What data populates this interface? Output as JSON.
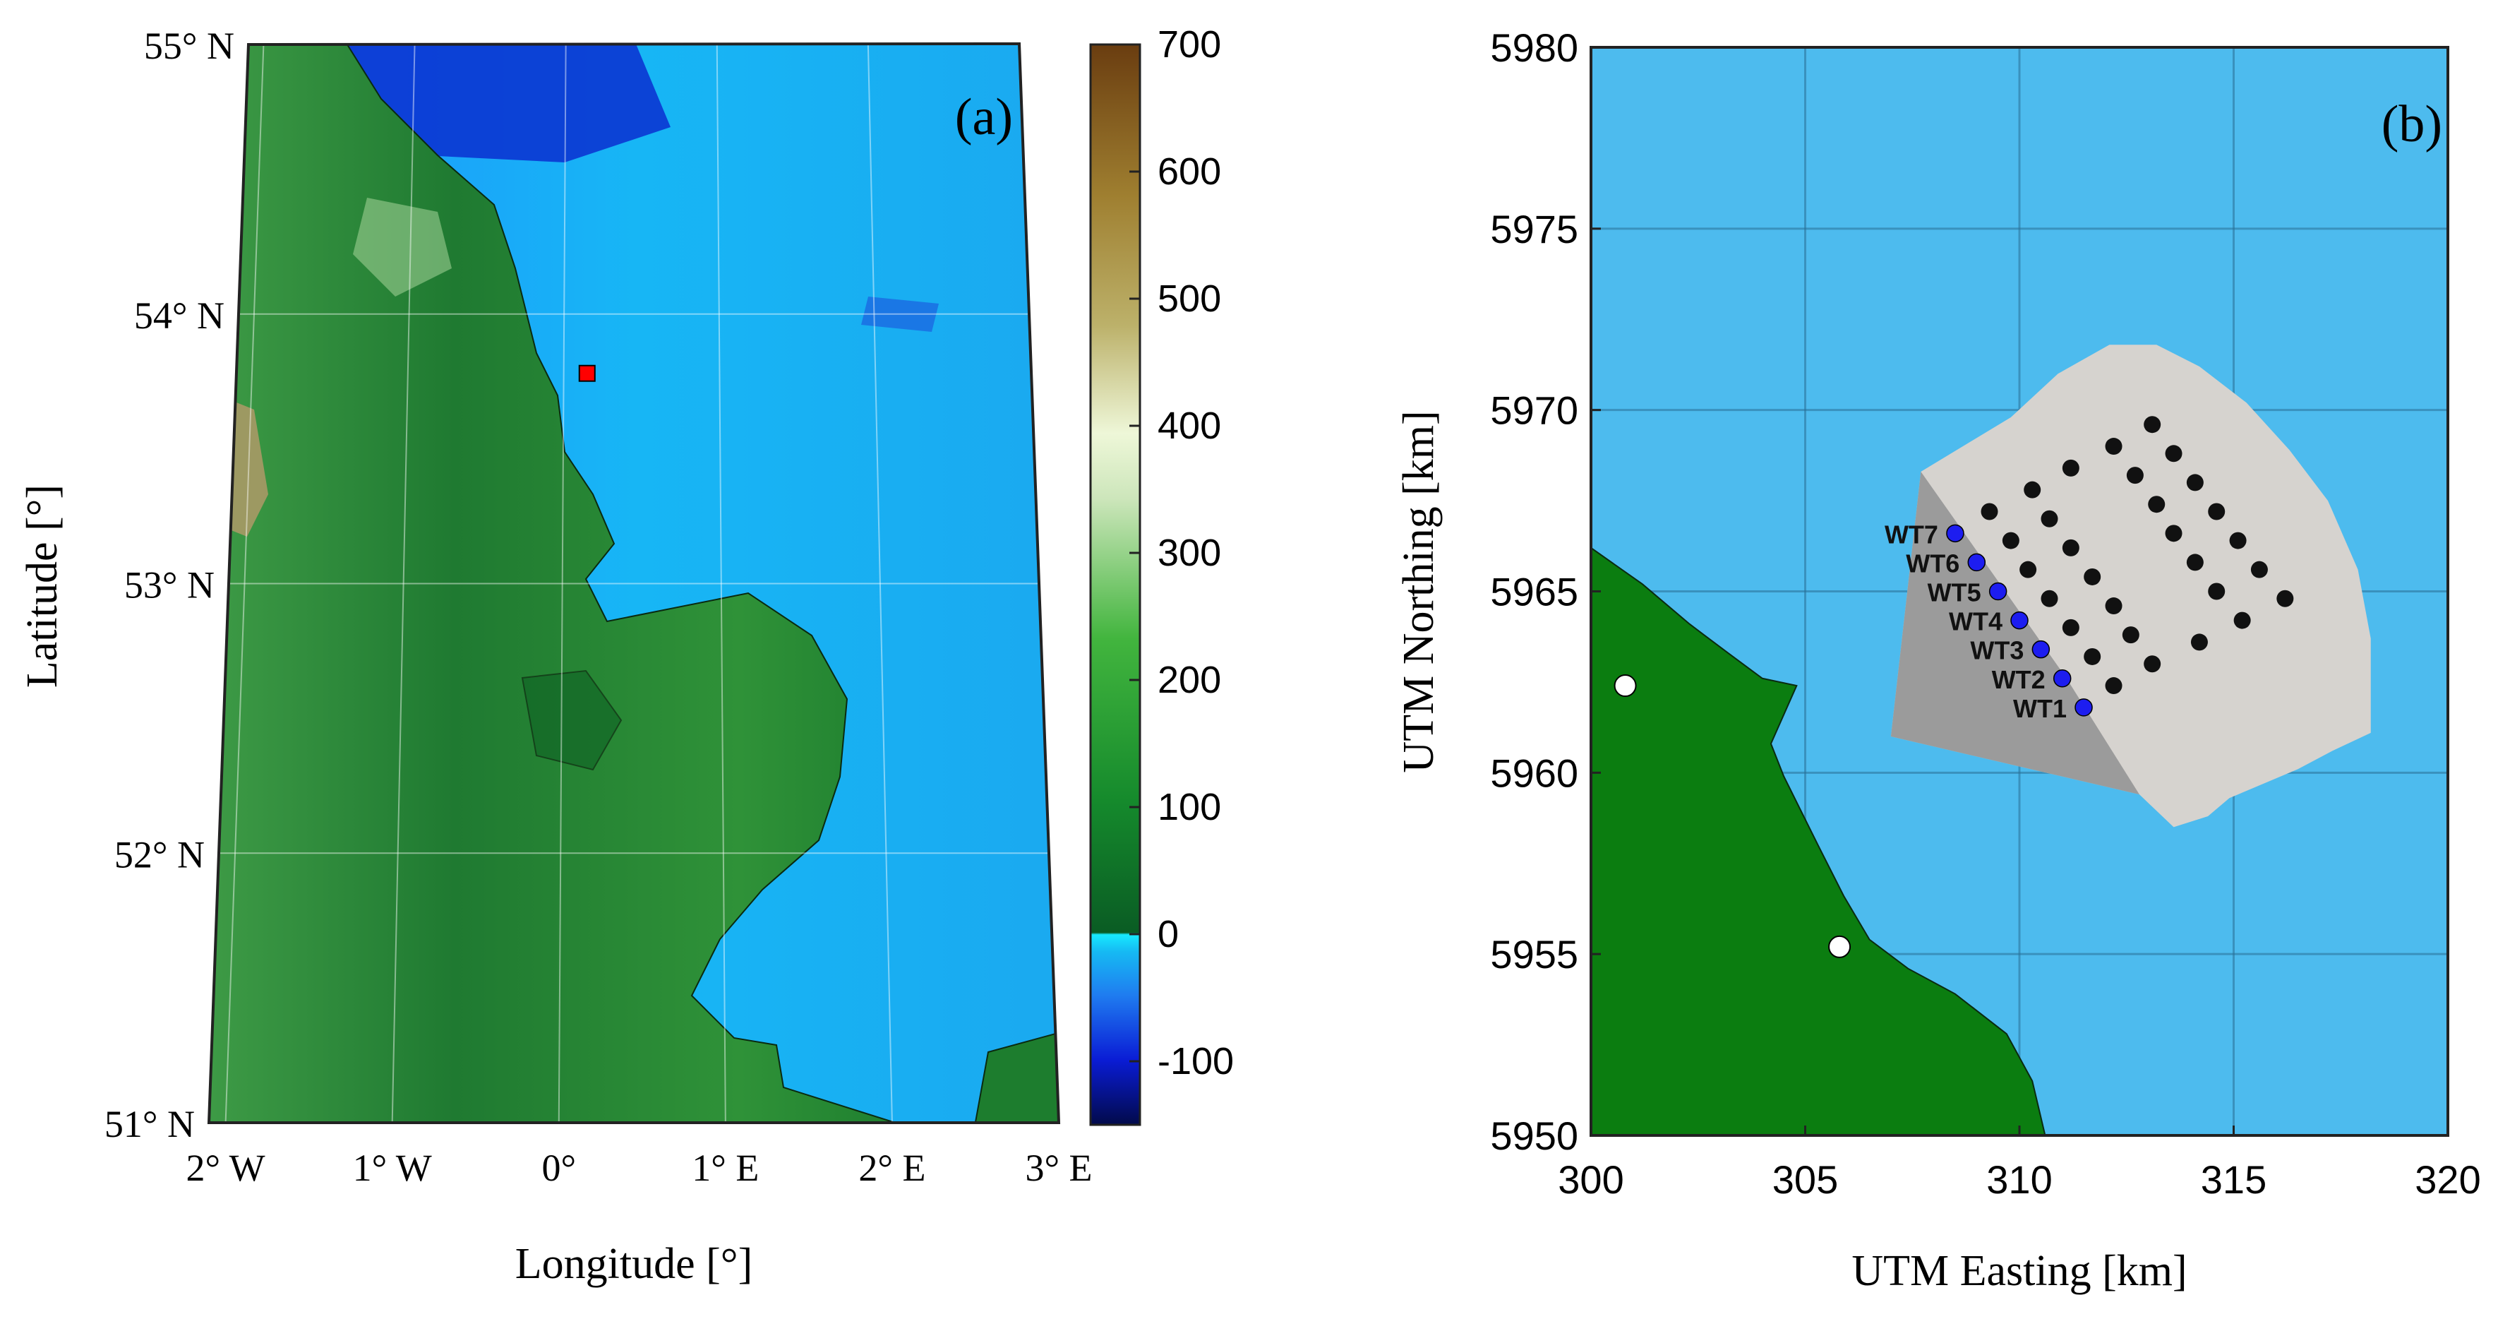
{
  "panel_a": {
    "label": "(a)",
    "xlabel": "Longitude [°]",
    "ylabel": "Latitude [°]",
    "lat_ticks": [
      {
        "lat": 55,
        "label": "55° N"
      },
      {
        "lat": 54,
        "label": "54° N"
      },
      {
        "lat": 53,
        "label": "53° N"
      },
      {
        "lat": 52,
        "label": "52° N"
      },
      {
        "lat": 51,
        "label": "51° N"
      }
    ],
    "lon_ticks": [
      {
        "lon": -2,
        "label": "2° W"
      },
      {
        "lon": -1,
        "label": "1° W"
      },
      {
        "lon": 0,
        "label": "0°"
      },
      {
        "lon": 1,
        "label": "1° E"
      },
      {
        "lon": 2,
        "label": "2° E"
      },
      {
        "lon": 3,
        "label": "3° E"
      }
    ],
    "site_marker": {
      "lon": 0.15,
      "lat": 53.78,
      "color": "#ff0000"
    },
    "colorbar": {
      "min": -150,
      "max": 700,
      "ticks": [
        {
          "value": 700,
          "label": "700"
        },
        {
          "value": 600,
          "label": "600"
        },
        {
          "value": 500,
          "label": "500"
        },
        {
          "value": 400,
          "label": "400"
        },
        {
          "value": 300,
          "label": "300"
        },
        {
          "value": 200,
          "label": "200"
        },
        {
          "value": 100,
          "label": "100"
        },
        {
          "value": 0,
          "label": "0"
        },
        {
          "value": -100,
          "label": "-100"
        }
      ]
    }
  },
  "panel_b": {
    "label": "(b)",
    "xlabel": "UTM Easting [km]",
    "ylabel": "UTM Northing [km]",
    "xlim": [
      300,
      320
    ],
    "ylim": [
      5950,
      5980
    ],
    "x_ticks": [
      {
        "value": 300,
        "label": "300"
      },
      {
        "value": 305,
        "label": "305"
      },
      {
        "value": 310,
        "label": "310"
      },
      {
        "value": 315,
        "label": "315"
      },
      {
        "value": 320,
        "label": "320"
      }
    ],
    "y_ticks": [
      {
        "value": 5950,
        "label": "5950"
      },
      {
        "value": 5955,
        "label": "5955"
      },
      {
        "value": 5960,
        "label": "5960"
      },
      {
        "value": 5965,
        "label": "5965"
      },
      {
        "value": 5970,
        "label": "5970"
      },
      {
        "value": 5975,
        "label": "5975"
      },
      {
        "value": 5980,
        "label": "5980"
      }
    ],
    "colors": {
      "sea": "#4dbbee",
      "land": "#0b7d10",
      "farm": "#d6d3cf",
      "sector": "#9b9b9b",
      "turbine": "#111111",
      "labelled_turbine": "#1d1df0"
    },
    "coastline": [
      [
        300,
        5966.2
      ],
      [
        301.2,
        5965.2
      ],
      [
        302.3,
        5964.1
      ],
      [
        303.2,
        5963.3
      ],
      [
        304,
        5962.6
      ],
      [
        304.8,
        5962.4
      ],
      [
        304.2,
        5960.8
      ],
      [
        304.5,
        5959.9
      ],
      [
        305.3,
        5958
      ],
      [
        305.9,
        5956.6
      ],
      [
        306.5,
        5955.4
      ],
      [
        307.4,
        5954.6
      ],
      [
        308.5,
        5953.9
      ],
      [
        309.7,
        5952.8
      ],
      [
        310.3,
        5951.5
      ],
      [
        310.6,
        5950
      ],
      [
        300,
        5950
      ]
    ],
    "wind_farm": [
      [
        307,
        5961
      ],
      [
        307.7,
        5968.3
      ],
      [
        309.8,
        5969.8
      ],
      [
        310.9,
        5971
      ],
      [
        312.1,
        5971.8
      ],
      [
        313.2,
        5971.8
      ],
      [
        314.2,
        5971.2
      ],
      [
        315.3,
        5970.2
      ],
      [
        316.3,
        5968.9
      ],
      [
        317.2,
        5967.5
      ],
      [
        317.9,
        5965.6
      ],
      [
        318.2,
        5963.7
      ],
      [
        318.2,
        5961.1
      ],
      [
        317.3,
        5960.6
      ],
      [
        316.5,
        5960.1
      ],
      [
        315.7,
        5959.7
      ],
      [
        314.9,
        5959.3
      ],
      [
        314.4,
        5958.8
      ],
      [
        313.6,
        5958.5
      ],
      [
        312.8,
        5959.4
      ]
    ],
    "sector": [
      [
        307,
        5961
      ],
      [
        307.7,
        5968.3
      ],
      [
        311.1,
        5962.6
      ],
      [
        312.8,
        5959.4
      ]
    ],
    "labelled_turbines": [
      {
        "label": "WT7",
        "x": 308.5,
        "y": 5966.6
      },
      {
        "label": "WT6",
        "x": 309.0,
        "y": 5965.8
      },
      {
        "label": "WT5",
        "x": 309.5,
        "y": 5965.0
      },
      {
        "label": "WT4",
        "x": 310.0,
        "y": 5964.2
      },
      {
        "label": "WT3",
        "x": 310.5,
        "y": 5963.4
      },
      {
        "label": "WT2",
        "x": 311.0,
        "y": 5962.6
      },
      {
        "label": "WT1",
        "x": 311.5,
        "y": 5961.8
      }
    ],
    "turbines": [
      [
        309.3,
        5967.2
      ],
      [
        310.3,
        5967.8
      ],
      [
        311.2,
        5968.4
      ],
      [
        312.2,
        5969.0
      ],
      [
        313.1,
        5969.6
      ],
      [
        309.8,
        5966.4
      ],
      [
        310.7,
        5967.0
      ],
      [
        312.7,
        5968.2
      ],
      [
        313.6,
        5968.8
      ],
      [
        310.2,
        5965.6
      ],
      [
        311.2,
        5966.2
      ],
      [
        313.2,
        5967.4
      ],
      [
        314.1,
        5968.0
      ],
      [
        310.7,
        5964.8
      ],
      [
        311.7,
        5965.4
      ],
      [
        313.6,
        5966.6
      ],
      [
        314.6,
        5967.2
      ],
      [
        311.2,
        5964.0
      ],
      [
        312.2,
        5964.6
      ],
      [
        314.1,
        5965.8
      ],
      [
        315.1,
        5966.4
      ],
      [
        311.7,
        5963.2
      ],
      [
        312.6,
        5963.8
      ],
      [
        314.6,
        5965.0
      ],
      [
        315.6,
        5965.6
      ],
      [
        312.2,
        5962.4
      ],
      [
        313.1,
        5963.0
      ],
      [
        314.2,
        5963.6
      ],
      [
        315.2,
        5964.2
      ],
      [
        316.2,
        5964.8
      ]
    ],
    "white_markers": [
      [
        300.8,
        5962.4
      ],
      [
        305.8,
        5955.2
      ]
    ]
  }
}
